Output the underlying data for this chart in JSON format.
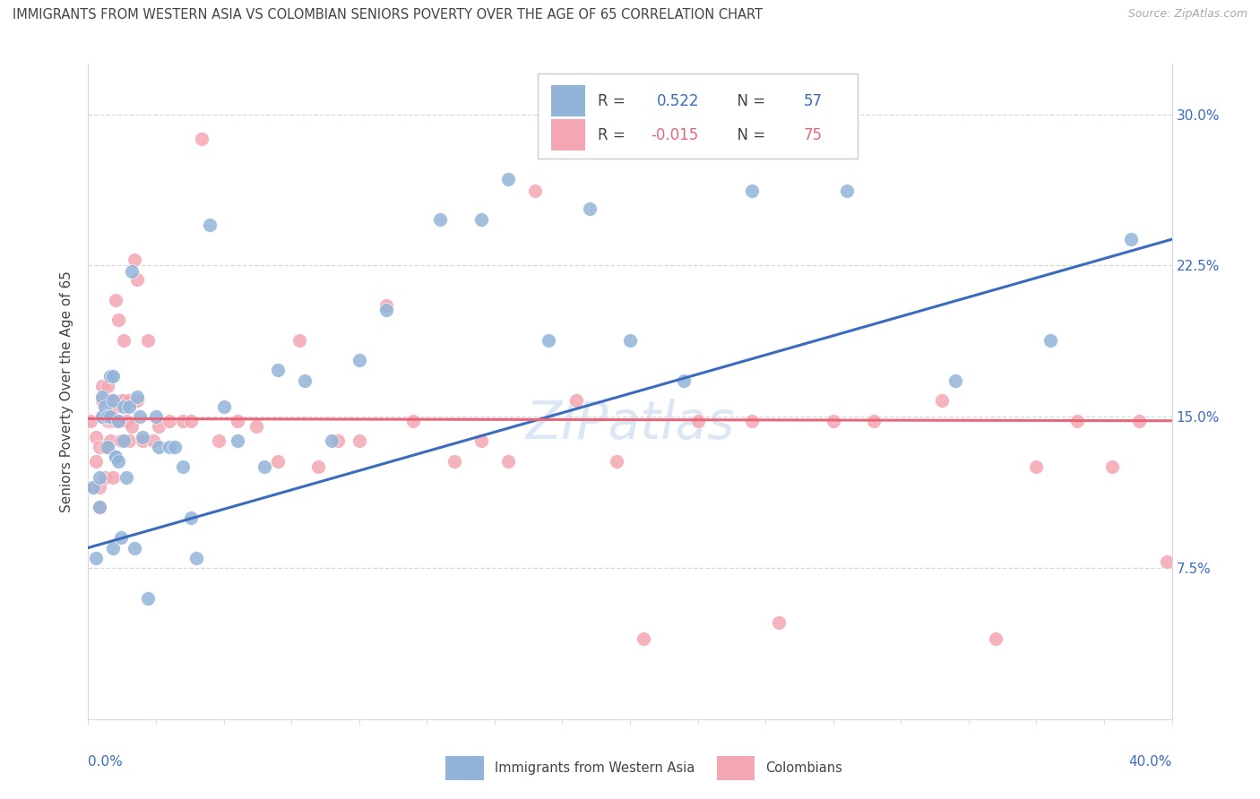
{
  "title": "IMMIGRANTS FROM WESTERN ASIA VS COLOMBIAN SENIORS POVERTY OVER THE AGE OF 65 CORRELATION CHART",
  "source": "Source: ZipAtlas.com",
  "ylabel": "Seniors Poverty Over the Age of 65",
  "xlim": [
    0.0,
    0.4
  ],
  "ylim": [
    0.0,
    0.325
  ],
  "x_left_label": "0.0%",
  "x_right_label": "40.0%",
  "ylabel_ticks": [
    "7.5%",
    "15.0%",
    "22.5%",
    "30.0%"
  ],
  "ylabel_tick_vals": [
    0.075,
    0.15,
    0.225,
    0.3
  ],
  "legend1_R": "0.522",
  "legend1_N": "57",
  "legend2_R": "-0.015",
  "legend2_N": "75",
  "blue_color": "#92b4d9",
  "pink_color": "#f4a7b2",
  "blue_line_color": "#3a6bbf",
  "pink_line_color": "#e8667a",
  "text_dark": "#444444",
  "text_blue": "#3a6bbf",
  "watermark": "ZIPatlas",
  "grid_color": "#d8d8d8",
  "legend_box_label1": "Immigrants from Western Asia",
  "legend_box_label2": "Colombians",
  "blue_scatter_x": [
    0.002,
    0.003,
    0.004,
    0.004,
    0.005,
    0.005,
    0.006,
    0.007,
    0.007,
    0.008,
    0.008,
    0.009,
    0.009,
    0.009,
    0.01,
    0.01,
    0.011,
    0.011,
    0.012,
    0.013,
    0.013,
    0.014,
    0.015,
    0.016,
    0.017,
    0.018,
    0.019,
    0.02,
    0.022,
    0.025,
    0.026,
    0.03,
    0.032,
    0.035,
    0.038,
    0.04,
    0.045,
    0.05,
    0.055,
    0.065,
    0.07,
    0.08,
    0.09,
    0.1,
    0.11,
    0.13,
    0.145,
    0.155,
    0.17,
    0.185,
    0.2,
    0.22,
    0.245,
    0.28,
    0.32,
    0.355,
    0.385
  ],
  "blue_scatter_y": [
    0.115,
    0.08,
    0.12,
    0.105,
    0.16,
    0.15,
    0.155,
    0.135,
    0.15,
    0.17,
    0.15,
    0.17,
    0.158,
    0.085,
    0.13,
    0.13,
    0.128,
    0.148,
    0.09,
    0.155,
    0.138,
    0.12,
    0.155,
    0.222,
    0.085,
    0.16,
    0.15,
    0.14,
    0.06,
    0.15,
    0.135,
    0.135,
    0.135,
    0.125,
    0.1,
    0.08,
    0.245,
    0.155,
    0.138,
    0.125,
    0.173,
    0.168,
    0.138,
    0.178,
    0.203,
    0.248,
    0.248,
    0.268,
    0.188,
    0.253,
    0.188,
    0.168,
    0.262,
    0.262,
    0.168,
    0.188,
    0.238
  ],
  "pink_scatter_x": [
    0.001,
    0.002,
    0.003,
    0.003,
    0.004,
    0.004,
    0.004,
    0.005,
    0.005,
    0.005,
    0.006,
    0.006,
    0.006,
    0.007,
    0.007,
    0.007,
    0.008,
    0.008,
    0.008,
    0.009,
    0.009,
    0.009,
    0.01,
    0.01,
    0.01,
    0.011,
    0.011,
    0.012,
    0.012,
    0.013,
    0.013,
    0.014,
    0.015,
    0.015,
    0.016,
    0.017,
    0.018,
    0.018,
    0.02,
    0.022,
    0.024,
    0.026,
    0.03,
    0.035,
    0.038,
    0.042,
    0.048,
    0.055,
    0.062,
    0.07,
    0.078,
    0.085,
    0.092,
    0.1,
    0.11,
    0.12,
    0.135,
    0.145,
    0.155,
    0.165,
    0.18,
    0.195,
    0.205,
    0.225,
    0.245,
    0.255,
    0.275,
    0.29,
    0.315,
    0.335,
    0.35,
    0.365,
    0.378,
    0.388,
    0.398
  ],
  "pink_scatter_y": [
    0.148,
    0.115,
    0.14,
    0.128,
    0.135,
    0.115,
    0.105,
    0.158,
    0.15,
    0.165,
    0.135,
    0.15,
    0.12,
    0.158,
    0.148,
    0.165,
    0.148,
    0.138,
    0.158,
    0.148,
    0.12,
    0.158,
    0.148,
    0.208,
    0.155,
    0.198,
    0.148,
    0.158,
    0.138,
    0.188,
    0.158,
    0.148,
    0.158,
    0.138,
    0.145,
    0.228,
    0.158,
    0.218,
    0.138,
    0.188,
    0.138,
    0.145,
    0.148,
    0.148,
    0.148,
    0.288,
    0.138,
    0.148,
    0.145,
    0.128,
    0.188,
    0.125,
    0.138,
    0.138,
    0.205,
    0.148,
    0.128,
    0.138,
    0.128,
    0.262,
    0.158,
    0.128,
    0.04,
    0.148,
    0.148,
    0.048,
    0.148,
    0.148,
    0.158,
    0.04,
    0.125,
    0.148,
    0.125,
    0.148,
    0.078
  ],
  "blue_line_x": [
    0.0,
    0.4
  ],
  "blue_line_y": [
    0.085,
    0.238
  ],
  "pink_line_x": [
    0.0,
    0.4
  ],
  "pink_line_y": [
    0.149,
    0.148
  ]
}
